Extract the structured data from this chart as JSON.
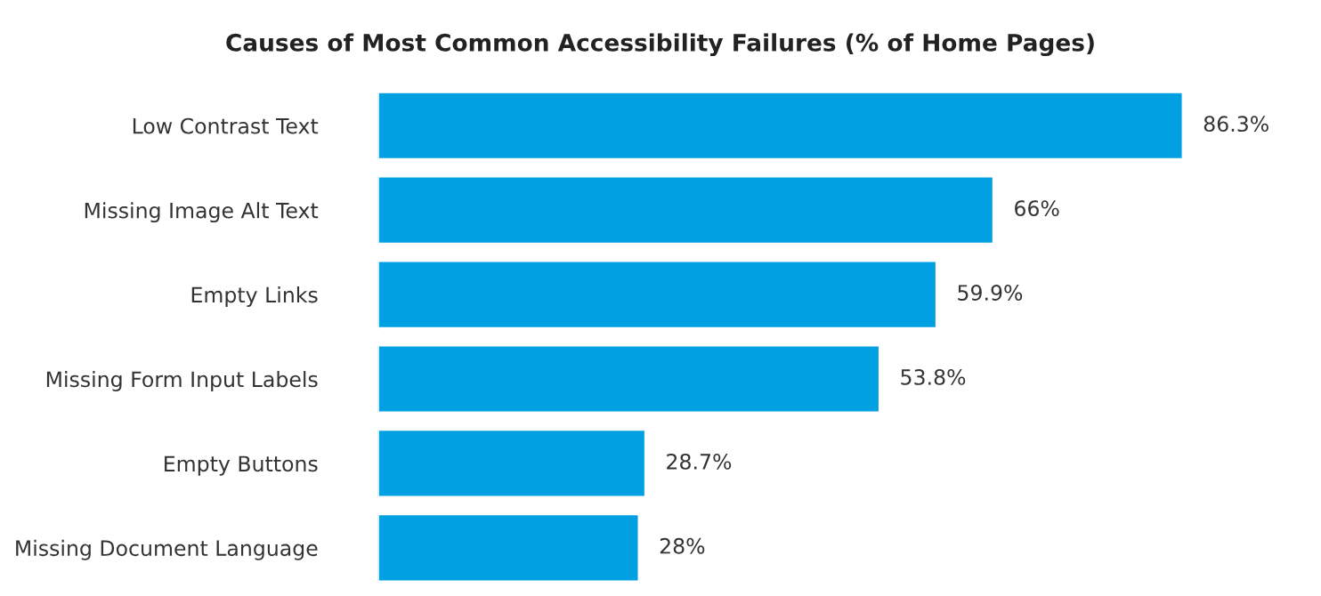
{
  "chart_data": {
    "type": "bar",
    "orientation": "horizontal",
    "title": "Causes of Most Common Accessibility Failures (% of Home Pages)",
    "categories": [
      "Low Contrast Text",
      "Missing Image Alt Text",
      "Empty Links",
      "Missing Form Input Labels",
      "Empty Buttons",
      "Missing Document Language"
    ],
    "values": [
      86.3,
      66,
      59.9,
      53.8,
      28.7,
      28
    ],
    "value_labels": [
      "86.3%",
      "66%",
      "59.9%",
      "53.8%",
      "28.7%",
      "28%"
    ],
    "color": "#00a0e3",
    "grid": false,
    "legend": false
  }
}
